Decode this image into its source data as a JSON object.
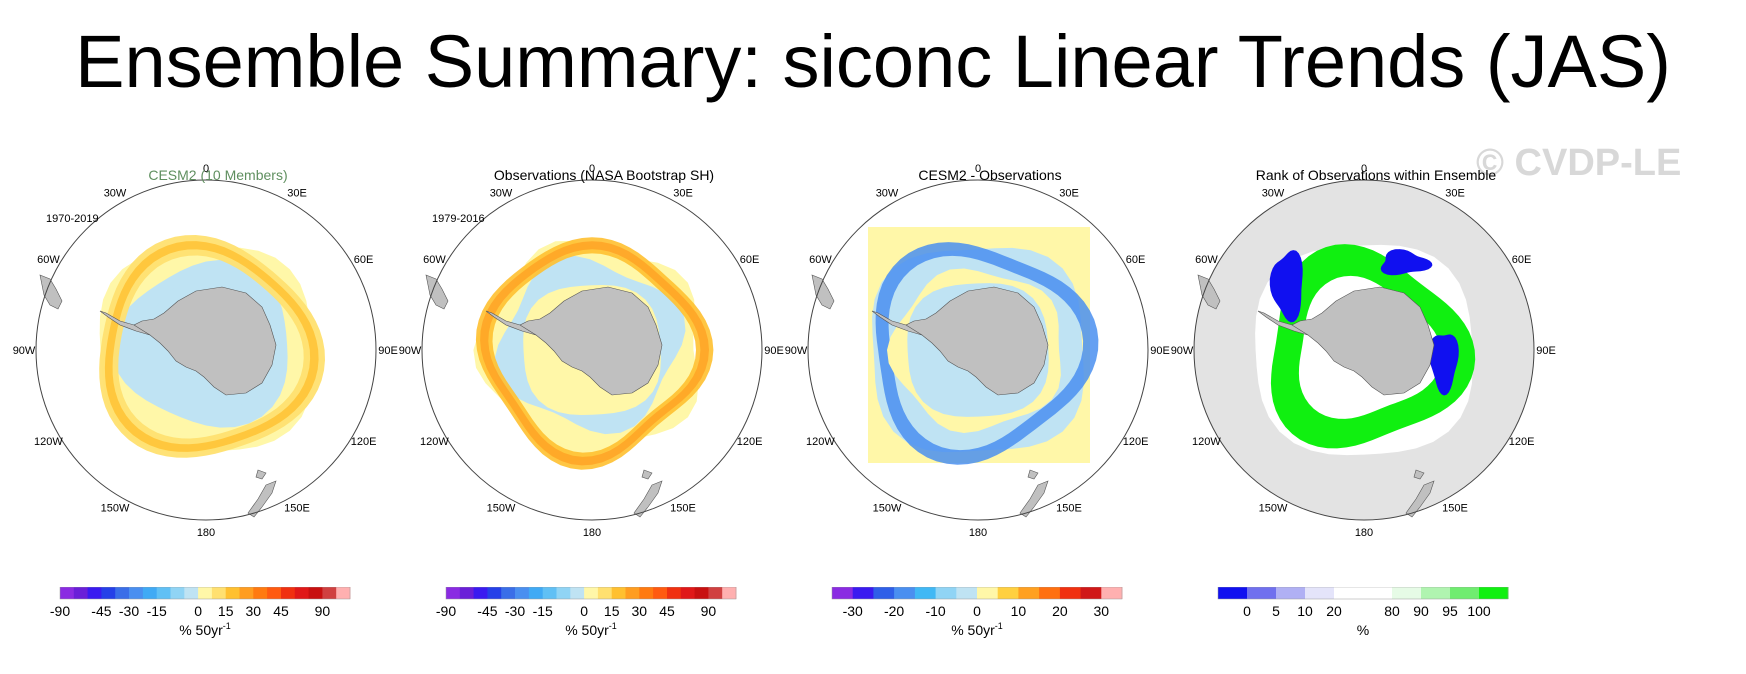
{
  "title": "Ensemble Summary: siconc Linear Trends (JAS)",
  "watermark": "© CVDP-LE",
  "map_labels": {
    "lon": [
      "0",
      "30E",
      "60E",
      "90E",
      "120E",
      "150E",
      "180",
      "150W",
      "120W",
      "90W",
      "60W",
      "30W"
    ]
  },
  "colors": {
    "land": "#c0c0c0",
    "ocean": "#ffffff",
    "rank_background": "#e3e3e3",
    "title_green": "#5f8f5f"
  },
  "panels": [
    {
      "title": "CESM2 (10 Members)",
      "period": "1970-2019",
      "colorbar": {
        "colors": [
          "#8a2be2",
          "#6a1fd8",
          "#3a1af0",
          "#2540e8",
          "#3a6ee8",
          "#4a8ff0",
          "#40aaf5",
          "#60c0f5",
          "#90d4f5",
          "#bfe3f3",
          "#fff7a8",
          "#ffe070",
          "#ffc030",
          "#ff9d20",
          "#ff7a10",
          "#ff5a10",
          "#f03010",
          "#e01818",
          "#c81010",
          "#d04040",
          "#ffb0b0"
        ],
        "labels": [
          "-90",
          "-45",
          "-30",
          "-15",
          "0",
          "15",
          "30",
          "45",
          "90"
        ],
        "label_positions": [
          0,
          3,
          5,
          7,
          10,
          12,
          14,
          16,
          19
        ],
        "unit": "% 50yr",
        "unit_sup": "-1"
      }
    },
    {
      "title": "Observations (NASA Bootstrap SH)",
      "period": "1979-2016",
      "colorbar": {
        "colors": [
          "#8a2be2",
          "#6a1fd8",
          "#3a1af0",
          "#2540e8",
          "#3a6ee8",
          "#4a8ff0",
          "#40aaf5",
          "#60c0f5",
          "#90d4f5",
          "#bfe3f3",
          "#fff7a8",
          "#ffe070",
          "#ffc030",
          "#ff9d20",
          "#ff7a10",
          "#ff5a10",
          "#f03010",
          "#e01818",
          "#c81010",
          "#d04040",
          "#ffb0b0"
        ],
        "labels": [
          "-90",
          "-45",
          "-30",
          "-15",
          "0",
          "15",
          "30",
          "45",
          "90"
        ],
        "label_positions": [
          0,
          3,
          5,
          7,
          10,
          12,
          14,
          16,
          19
        ],
        "unit": "% 50yr",
        "unit_sup": "-1"
      }
    },
    {
      "title": "CESM2 - Observations",
      "period": "",
      "colorbar": {
        "colors": [
          "#8a2be2",
          "#3a1af0",
          "#2f5fe8",
          "#4a8ff0",
          "#40b8f5",
          "#90d4f5",
          "#bfe3f3",
          "#fff7a8",
          "#ffd040",
          "#ffa020",
          "#ff7010",
          "#f03010",
          "#d01818",
          "#ffb0b0"
        ],
        "labels": [
          "-30",
          "-20",
          "-10",
          "0",
          "10",
          "20",
          "30"
        ],
        "label_positions": [
          1,
          3,
          5,
          7,
          9,
          11,
          13
        ],
        "unit": "% 50yr",
        "unit_sup": "-1"
      }
    },
    {
      "title": "Rank of Observations within Ensemble",
      "period": "",
      "colorbar": {
        "colors": [
          "#1010f0",
          "#7070ee",
          "#b0b0f4",
          "#e4e4fa",
          "#ffffff",
          "#ffffff",
          "#e6fbe6",
          "#b0f4b0",
          "#70ec70",
          "#10f010"
        ],
        "labels": [
          "0",
          "5",
          "10",
          "20",
          "80",
          "90",
          "95",
          "100"
        ],
        "label_positions": [
          1,
          2,
          3,
          4,
          6,
          7,
          8,
          9
        ],
        "unit": "%",
        "unit_sup": ""
      }
    }
  ]
}
